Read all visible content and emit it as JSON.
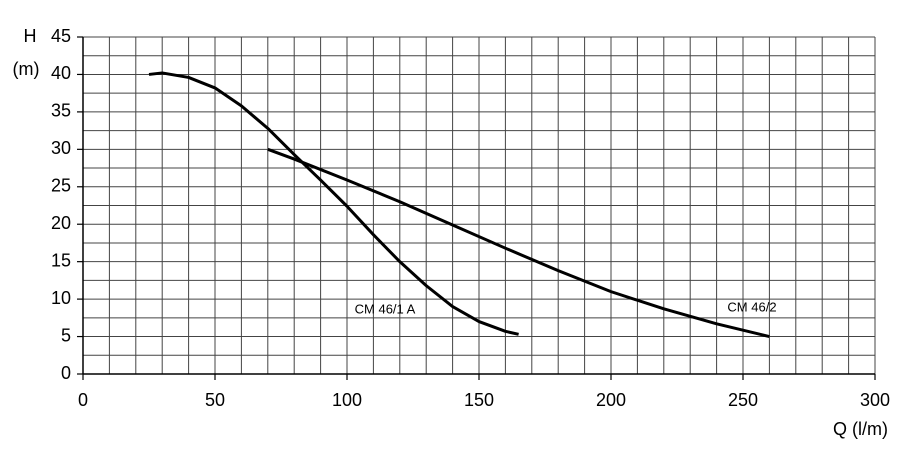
{
  "chart_data": {
    "type": "line",
    "y_label_line1": "H",
    "y_label_line2": "(m)",
    "x_label": "Q (l/m)",
    "xlim": [
      0,
      300
    ],
    "ylim": [
      0,
      45
    ],
    "xticks": [
      0,
      50,
      100,
      150,
      200,
      250,
      300
    ],
    "yticks": [
      0,
      5,
      10,
      15,
      20,
      25,
      30,
      35,
      40,
      45
    ],
    "grid": true,
    "x_grid_lines": [
      10,
      20,
      30,
      40,
      60,
      70,
      80,
      90,
      110,
      120,
      130,
      140,
      160,
      170,
      180,
      190,
      210,
      220,
      230,
      240,
      260,
      270,
      280,
      290
    ],
    "y_grid_lines": [
      2.5,
      7.5,
      12.5,
      17.5,
      22.5,
      27.5,
      32.5,
      37.5,
      42.5
    ],
    "series": [
      {
        "name": "CM 46/1 A",
        "color": "#000000",
        "x": [
          25,
          30,
          40,
          50,
          60,
          70,
          80,
          90,
          100,
          110,
          120,
          130,
          140,
          150,
          160,
          165
        ],
        "values": [
          40,
          40.2,
          39.6,
          38.2,
          35.8,
          32.8,
          29.3,
          25.9,
          22.4,
          18.6,
          15,
          11.8,
          9,
          7,
          5.7,
          5.3
        ]
      },
      {
        "name": "CM 46/2",
        "color": "#000000",
        "x": [
          70,
          80,
          100,
          120,
          140,
          160,
          180,
          200,
          220,
          240,
          260
        ],
        "values": [
          30,
          28.7,
          25.9,
          23,
          19.9,
          16.8,
          13.8,
          11,
          8.7,
          6.7,
          5
        ]
      }
    ]
  }
}
